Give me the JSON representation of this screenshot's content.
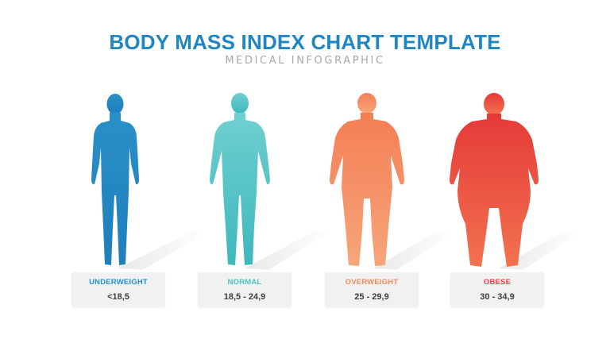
{
  "header": {
    "title": "BODY MASS INDEX CHART TEMPLATE",
    "subtitle": "MEDICAL INFOGRAPHIC"
  },
  "categories": [
    {
      "label": "UNDERWEIGHT",
      "range": "<18,5",
      "color": "#2a8fc7",
      "color_light": "#35a7d8",
      "icon": "slim-person-silhouette"
    },
    {
      "label": "NORMAL",
      "range": "18,5 - 24,9",
      "color": "#4ec2c4",
      "color_light": "#78d3d0",
      "icon": "normal-person-silhouette"
    },
    {
      "label": "OVERWEIGHT",
      "range": "25 - 29,9",
      "color": "#f08a5f",
      "color_light": "#f7a478",
      "icon": "overweight-person-silhouette"
    },
    {
      "label": "OBESE",
      "range": "30 - 34,9",
      "color": "#e9433f",
      "color_light": "#f36a55",
      "icon": "obese-person-silhouette"
    }
  ]
}
